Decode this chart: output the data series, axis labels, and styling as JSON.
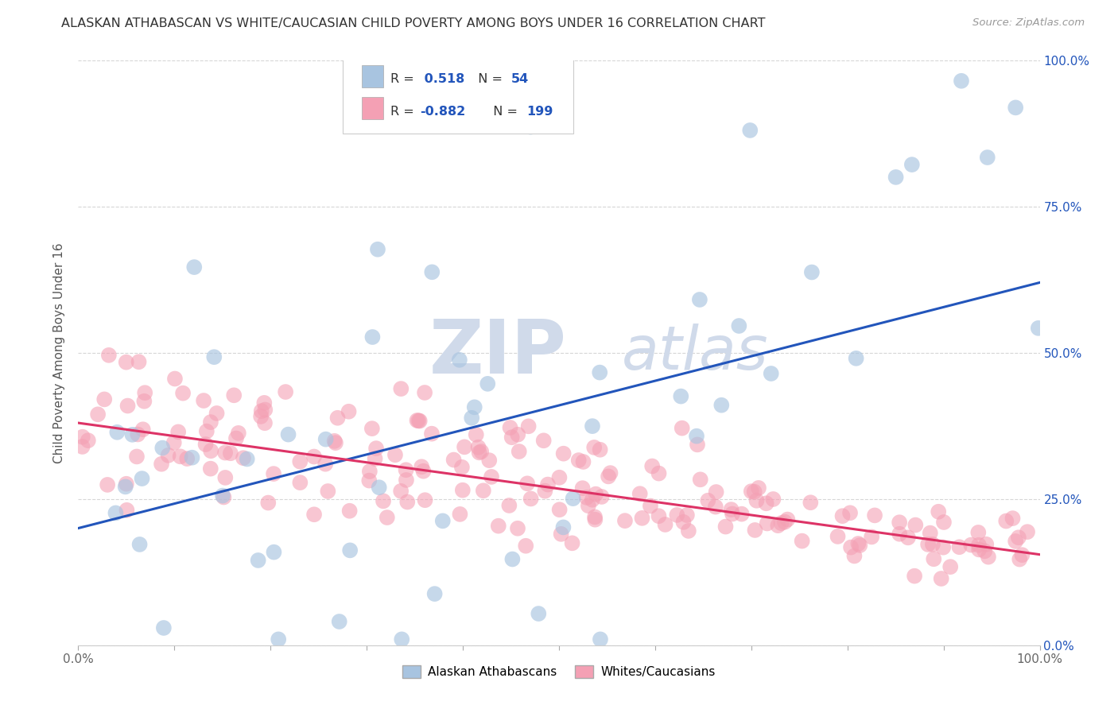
{
  "title": "ALASKAN ATHABASCAN VS WHITE/CAUCASIAN CHILD POVERTY AMONG BOYS UNDER 16 CORRELATION CHART",
  "source": "Source: ZipAtlas.com",
  "ylabel": "Child Poverty Among Boys Under 16",
  "xlim": [
    0,
    1.0
  ],
  "ylim": [
    0,
    1.0
  ],
  "background_color": "#ffffff",
  "blue_R": 0.518,
  "blue_N": 54,
  "pink_R": -0.882,
  "pink_N": 199,
  "blue_color": "#a8c4e0",
  "pink_color": "#f4a0b4",
  "blue_line_color": "#2255bb",
  "pink_line_color": "#dd3366",
  "blue_line_start_y": 0.2,
  "blue_line_end_y": 0.62,
  "pink_line_start_y": 0.38,
  "pink_line_end_y": 0.155,
  "watermark_color": "#d0daea",
  "legend_label_color": "#333333",
  "rv_color": "#2255bb",
  "right_tick_color": "#2255bb"
}
